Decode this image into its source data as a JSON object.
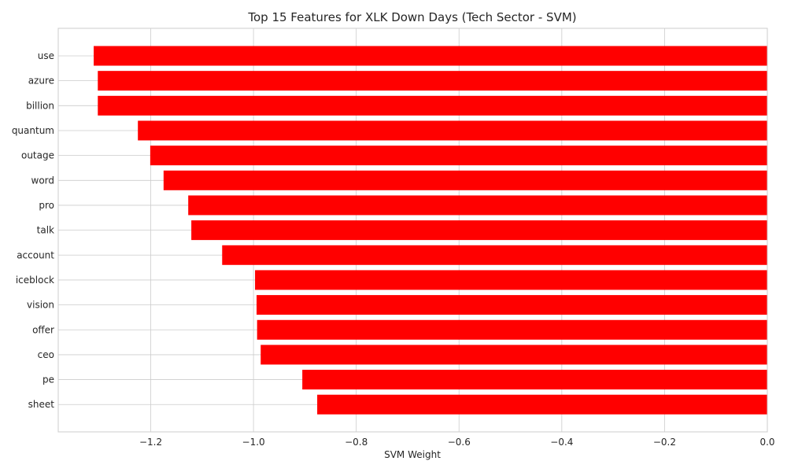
{
  "chart_data": {
    "type": "bar",
    "orientation": "horizontal",
    "title": "Top 15 Features for XLK Down Days (Tech Sector - SVM)",
    "xlabel": "SVM Weight",
    "ylabel": "",
    "categories": [
      "use",
      "azure",
      "billion",
      "quantum",
      "outage",
      "word",
      "pro",
      "talk",
      "account",
      "iceblock",
      "vision",
      "offer",
      "ceo",
      "pe",
      "sheet"
    ],
    "values": [
      -1.311,
      -1.303,
      -1.303,
      -1.225,
      -1.201,
      -1.175,
      -1.127,
      -1.121,
      -1.061,
      -0.997,
      -0.994,
      -0.993,
      -0.986,
      -0.905,
      -0.876
    ],
    "xlim": [
      -1.38,
      0.0
    ],
    "xticks": [
      -1.2,
      -1.0,
      -0.8,
      -0.6,
      -0.4,
      -0.2,
      0.0
    ],
    "xtick_labels": [
      "−1.2",
      "−1.0",
      "−0.8",
      "−0.6",
      "−0.4",
      "−0.2",
      "0.0"
    ],
    "grid": true,
    "bar_color": "#ff0000"
  }
}
